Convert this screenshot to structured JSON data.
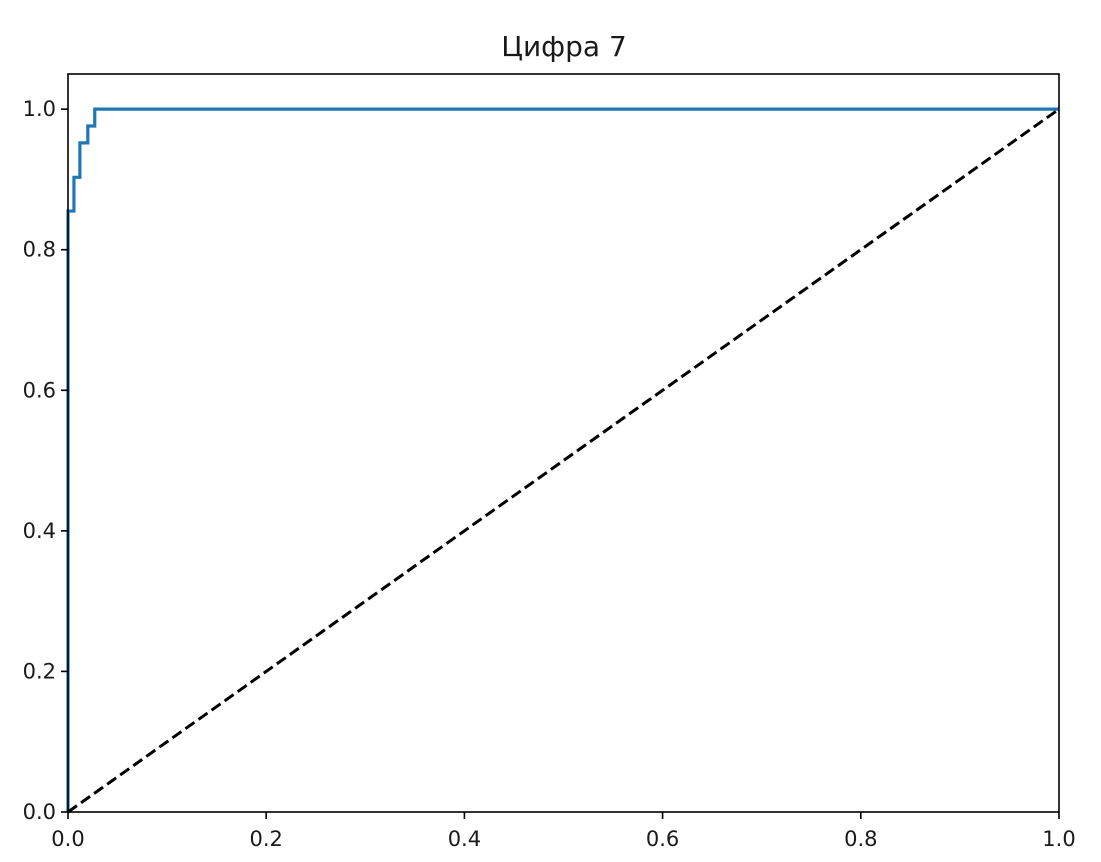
{
  "chart_data": {
    "type": "line",
    "title": "Цифра 7",
    "xlabel": "",
    "ylabel": "",
    "xlim": [
      0.0,
      1.0
    ],
    "ylim": [
      0.0,
      1.05
    ],
    "grid": false,
    "x_ticks": [
      "0.0",
      "0.2",
      "0.4",
      "0.6",
      "0.8",
      "1.0"
    ],
    "y_ticks": [
      "0.0",
      "0.2",
      "0.4",
      "0.6",
      "0.8",
      "1.0"
    ],
    "series": [
      {
        "color": "#1f77b4",
        "style": "step",
        "x": [
          0.0,
          0.0,
          0.0,
          0.006,
          0.006,
          0.012,
          0.012,
          0.02,
          0.02,
          0.027,
          0.027,
          1.0
        ],
        "y": [
          0.0,
          0.59,
          0.855,
          0.855,
          0.903,
          0.903,
          0.952,
          0.952,
          0.976,
          0.976,
          1.0,
          1.0
        ]
      },
      {
        "color": "#000000",
        "style": "dashed",
        "x": [
          0.0,
          1.0
        ],
        "y": [
          0.0,
          1.0
        ]
      }
    ]
  }
}
